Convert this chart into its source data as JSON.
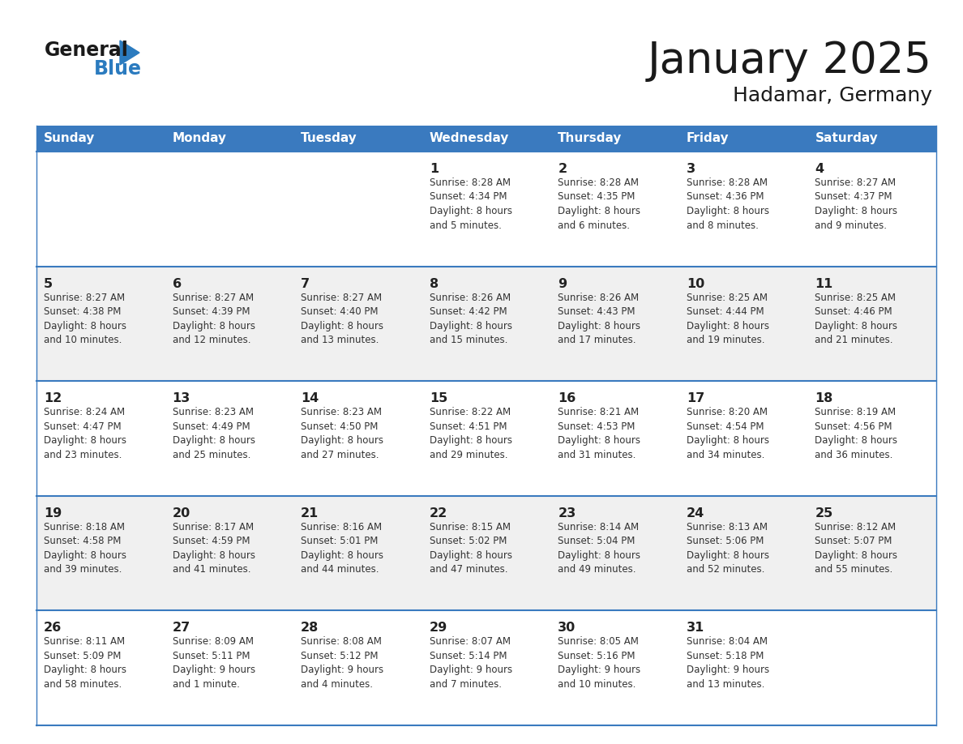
{
  "title": "January 2025",
  "subtitle": "Hadamar, Germany",
  "header_color": "#3a7abf",
  "header_text_color": "#ffffff",
  "weekdays": [
    "Sunday",
    "Monday",
    "Tuesday",
    "Wednesday",
    "Thursday",
    "Friday",
    "Saturday"
  ],
  "bg_color_even": "#ffffff",
  "bg_color_odd": "#f0f0f0",
  "row_separator_color": "#3a7abf",
  "cell_text_color": "#333333",
  "day_num_color": "#222222",
  "logo_general_color": "#1a1a1a",
  "logo_blue_color": "#2b7bbf",
  "calendar_data": [
    [
      {
        "day": "",
        "info": ""
      },
      {
        "day": "",
        "info": ""
      },
      {
        "day": "",
        "info": ""
      },
      {
        "day": "1",
        "info": "Sunrise: 8:28 AM\nSunset: 4:34 PM\nDaylight: 8 hours\nand 5 minutes."
      },
      {
        "day": "2",
        "info": "Sunrise: 8:28 AM\nSunset: 4:35 PM\nDaylight: 8 hours\nand 6 minutes."
      },
      {
        "day": "3",
        "info": "Sunrise: 8:28 AM\nSunset: 4:36 PM\nDaylight: 8 hours\nand 8 minutes."
      },
      {
        "day": "4",
        "info": "Sunrise: 8:27 AM\nSunset: 4:37 PM\nDaylight: 8 hours\nand 9 minutes."
      }
    ],
    [
      {
        "day": "5",
        "info": "Sunrise: 8:27 AM\nSunset: 4:38 PM\nDaylight: 8 hours\nand 10 minutes."
      },
      {
        "day": "6",
        "info": "Sunrise: 8:27 AM\nSunset: 4:39 PM\nDaylight: 8 hours\nand 12 minutes."
      },
      {
        "day": "7",
        "info": "Sunrise: 8:27 AM\nSunset: 4:40 PM\nDaylight: 8 hours\nand 13 minutes."
      },
      {
        "day": "8",
        "info": "Sunrise: 8:26 AM\nSunset: 4:42 PM\nDaylight: 8 hours\nand 15 minutes."
      },
      {
        "day": "9",
        "info": "Sunrise: 8:26 AM\nSunset: 4:43 PM\nDaylight: 8 hours\nand 17 minutes."
      },
      {
        "day": "10",
        "info": "Sunrise: 8:25 AM\nSunset: 4:44 PM\nDaylight: 8 hours\nand 19 minutes."
      },
      {
        "day": "11",
        "info": "Sunrise: 8:25 AM\nSunset: 4:46 PM\nDaylight: 8 hours\nand 21 minutes."
      }
    ],
    [
      {
        "day": "12",
        "info": "Sunrise: 8:24 AM\nSunset: 4:47 PM\nDaylight: 8 hours\nand 23 minutes."
      },
      {
        "day": "13",
        "info": "Sunrise: 8:23 AM\nSunset: 4:49 PM\nDaylight: 8 hours\nand 25 minutes."
      },
      {
        "day": "14",
        "info": "Sunrise: 8:23 AM\nSunset: 4:50 PM\nDaylight: 8 hours\nand 27 minutes."
      },
      {
        "day": "15",
        "info": "Sunrise: 8:22 AM\nSunset: 4:51 PM\nDaylight: 8 hours\nand 29 minutes."
      },
      {
        "day": "16",
        "info": "Sunrise: 8:21 AM\nSunset: 4:53 PM\nDaylight: 8 hours\nand 31 minutes."
      },
      {
        "day": "17",
        "info": "Sunrise: 8:20 AM\nSunset: 4:54 PM\nDaylight: 8 hours\nand 34 minutes."
      },
      {
        "day": "18",
        "info": "Sunrise: 8:19 AM\nSunset: 4:56 PM\nDaylight: 8 hours\nand 36 minutes."
      }
    ],
    [
      {
        "day": "19",
        "info": "Sunrise: 8:18 AM\nSunset: 4:58 PM\nDaylight: 8 hours\nand 39 minutes."
      },
      {
        "day": "20",
        "info": "Sunrise: 8:17 AM\nSunset: 4:59 PM\nDaylight: 8 hours\nand 41 minutes."
      },
      {
        "day": "21",
        "info": "Sunrise: 8:16 AM\nSunset: 5:01 PM\nDaylight: 8 hours\nand 44 minutes."
      },
      {
        "day": "22",
        "info": "Sunrise: 8:15 AM\nSunset: 5:02 PM\nDaylight: 8 hours\nand 47 minutes."
      },
      {
        "day": "23",
        "info": "Sunrise: 8:14 AM\nSunset: 5:04 PM\nDaylight: 8 hours\nand 49 minutes."
      },
      {
        "day": "24",
        "info": "Sunrise: 8:13 AM\nSunset: 5:06 PM\nDaylight: 8 hours\nand 52 minutes."
      },
      {
        "day": "25",
        "info": "Sunrise: 8:12 AM\nSunset: 5:07 PM\nDaylight: 8 hours\nand 55 minutes."
      }
    ],
    [
      {
        "day": "26",
        "info": "Sunrise: 8:11 AM\nSunset: 5:09 PM\nDaylight: 8 hours\nand 58 minutes."
      },
      {
        "day": "27",
        "info": "Sunrise: 8:09 AM\nSunset: 5:11 PM\nDaylight: 9 hours\nand 1 minute."
      },
      {
        "day": "28",
        "info": "Sunrise: 8:08 AM\nSunset: 5:12 PM\nDaylight: 9 hours\nand 4 minutes."
      },
      {
        "day": "29",
        "info": "Sunrise: 8:07 AM\nSunset: 5:14 PM\nDaylight: 9 hours\nand 7 minutes."
      },
      {
        "day": "30",
        "info": "Sunrise: 8:05 AM\nSunset: 5:16 PM\nDaylight: 9 hours\nand 10 minutes."
      },
      {
        "day": "31",
        "info": "Sunrise: 8:04 AM\nSunset: 5:18 PM\nDaylight: 9 hours\nand 13 minutes."
      },
      {
        "day": "",
        "info": ""
      }
    ]
  ]
}
